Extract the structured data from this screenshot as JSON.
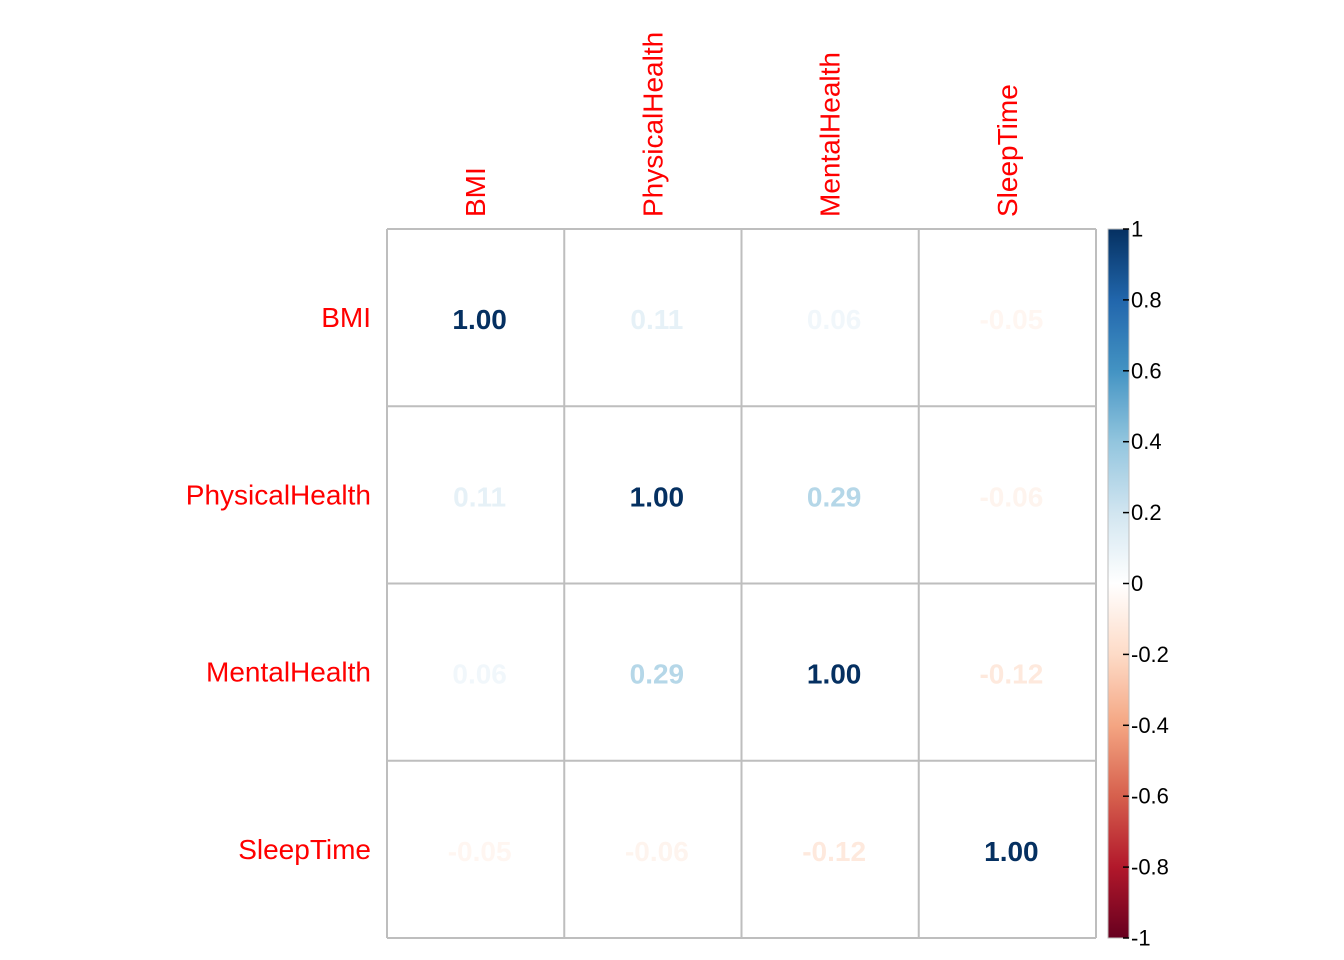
{
  "chart_data": {
    "type": "heatmap",
    "variables": [
      "BMI",
      "PhysicalHealth",
      "MentalHealth",
      "SleepTime"
    ],
    "matrix": [
      [
        1.0,
        0.11,
        0.06,
        -0.05
      ],
      [
        0.11,
        1.0,
        0.29,
        -0.06
      ],
      [
        0.06,
        0.29,
        1.0,
        -0.12
      ],
      [
        -0.05,
        -0.06,
        -0.12,
        1.0
      ]
    ],
    "value_labels": [
      [
        "1.00",
        "0.11",
        "0.06",
        "-0.05"
      ],
      [
        "0.11",
        "1.00",
        "0.29",
        "-0.06"
      ],
      [
        "0.06",
        "0.29",
        "1.00",
        "-0.12"
      ],
      [
        "-0.05",
        "-0.06",
        "-0.12",
        "1.00"
      ]
    ],
    "colorbar": {
      "range": [
        -1,
        1
      ],
      "ticks": [
        "1",
        "0.8",
        "0.6",
        "0.4",
        "0.2",
        "0",
        "-0.2",
        "-0.4",
        "-0.6",
        "-0.8",
        "-1"
      ]
    },
    "label_color": "#FF0000",
    "grid_color": "#BEBEBE",
    "color_scale": [
      "#67001F",
      "#B2182B",
      "#D6604D",
      "#F4A582",
      "#FDDBC7",
      "#FFFFFF",
      "#D1E5F0",
      "#92C5DE",
      "#4393C3",
      "#2166AC",
      "#053061"
    ]
  }
}
